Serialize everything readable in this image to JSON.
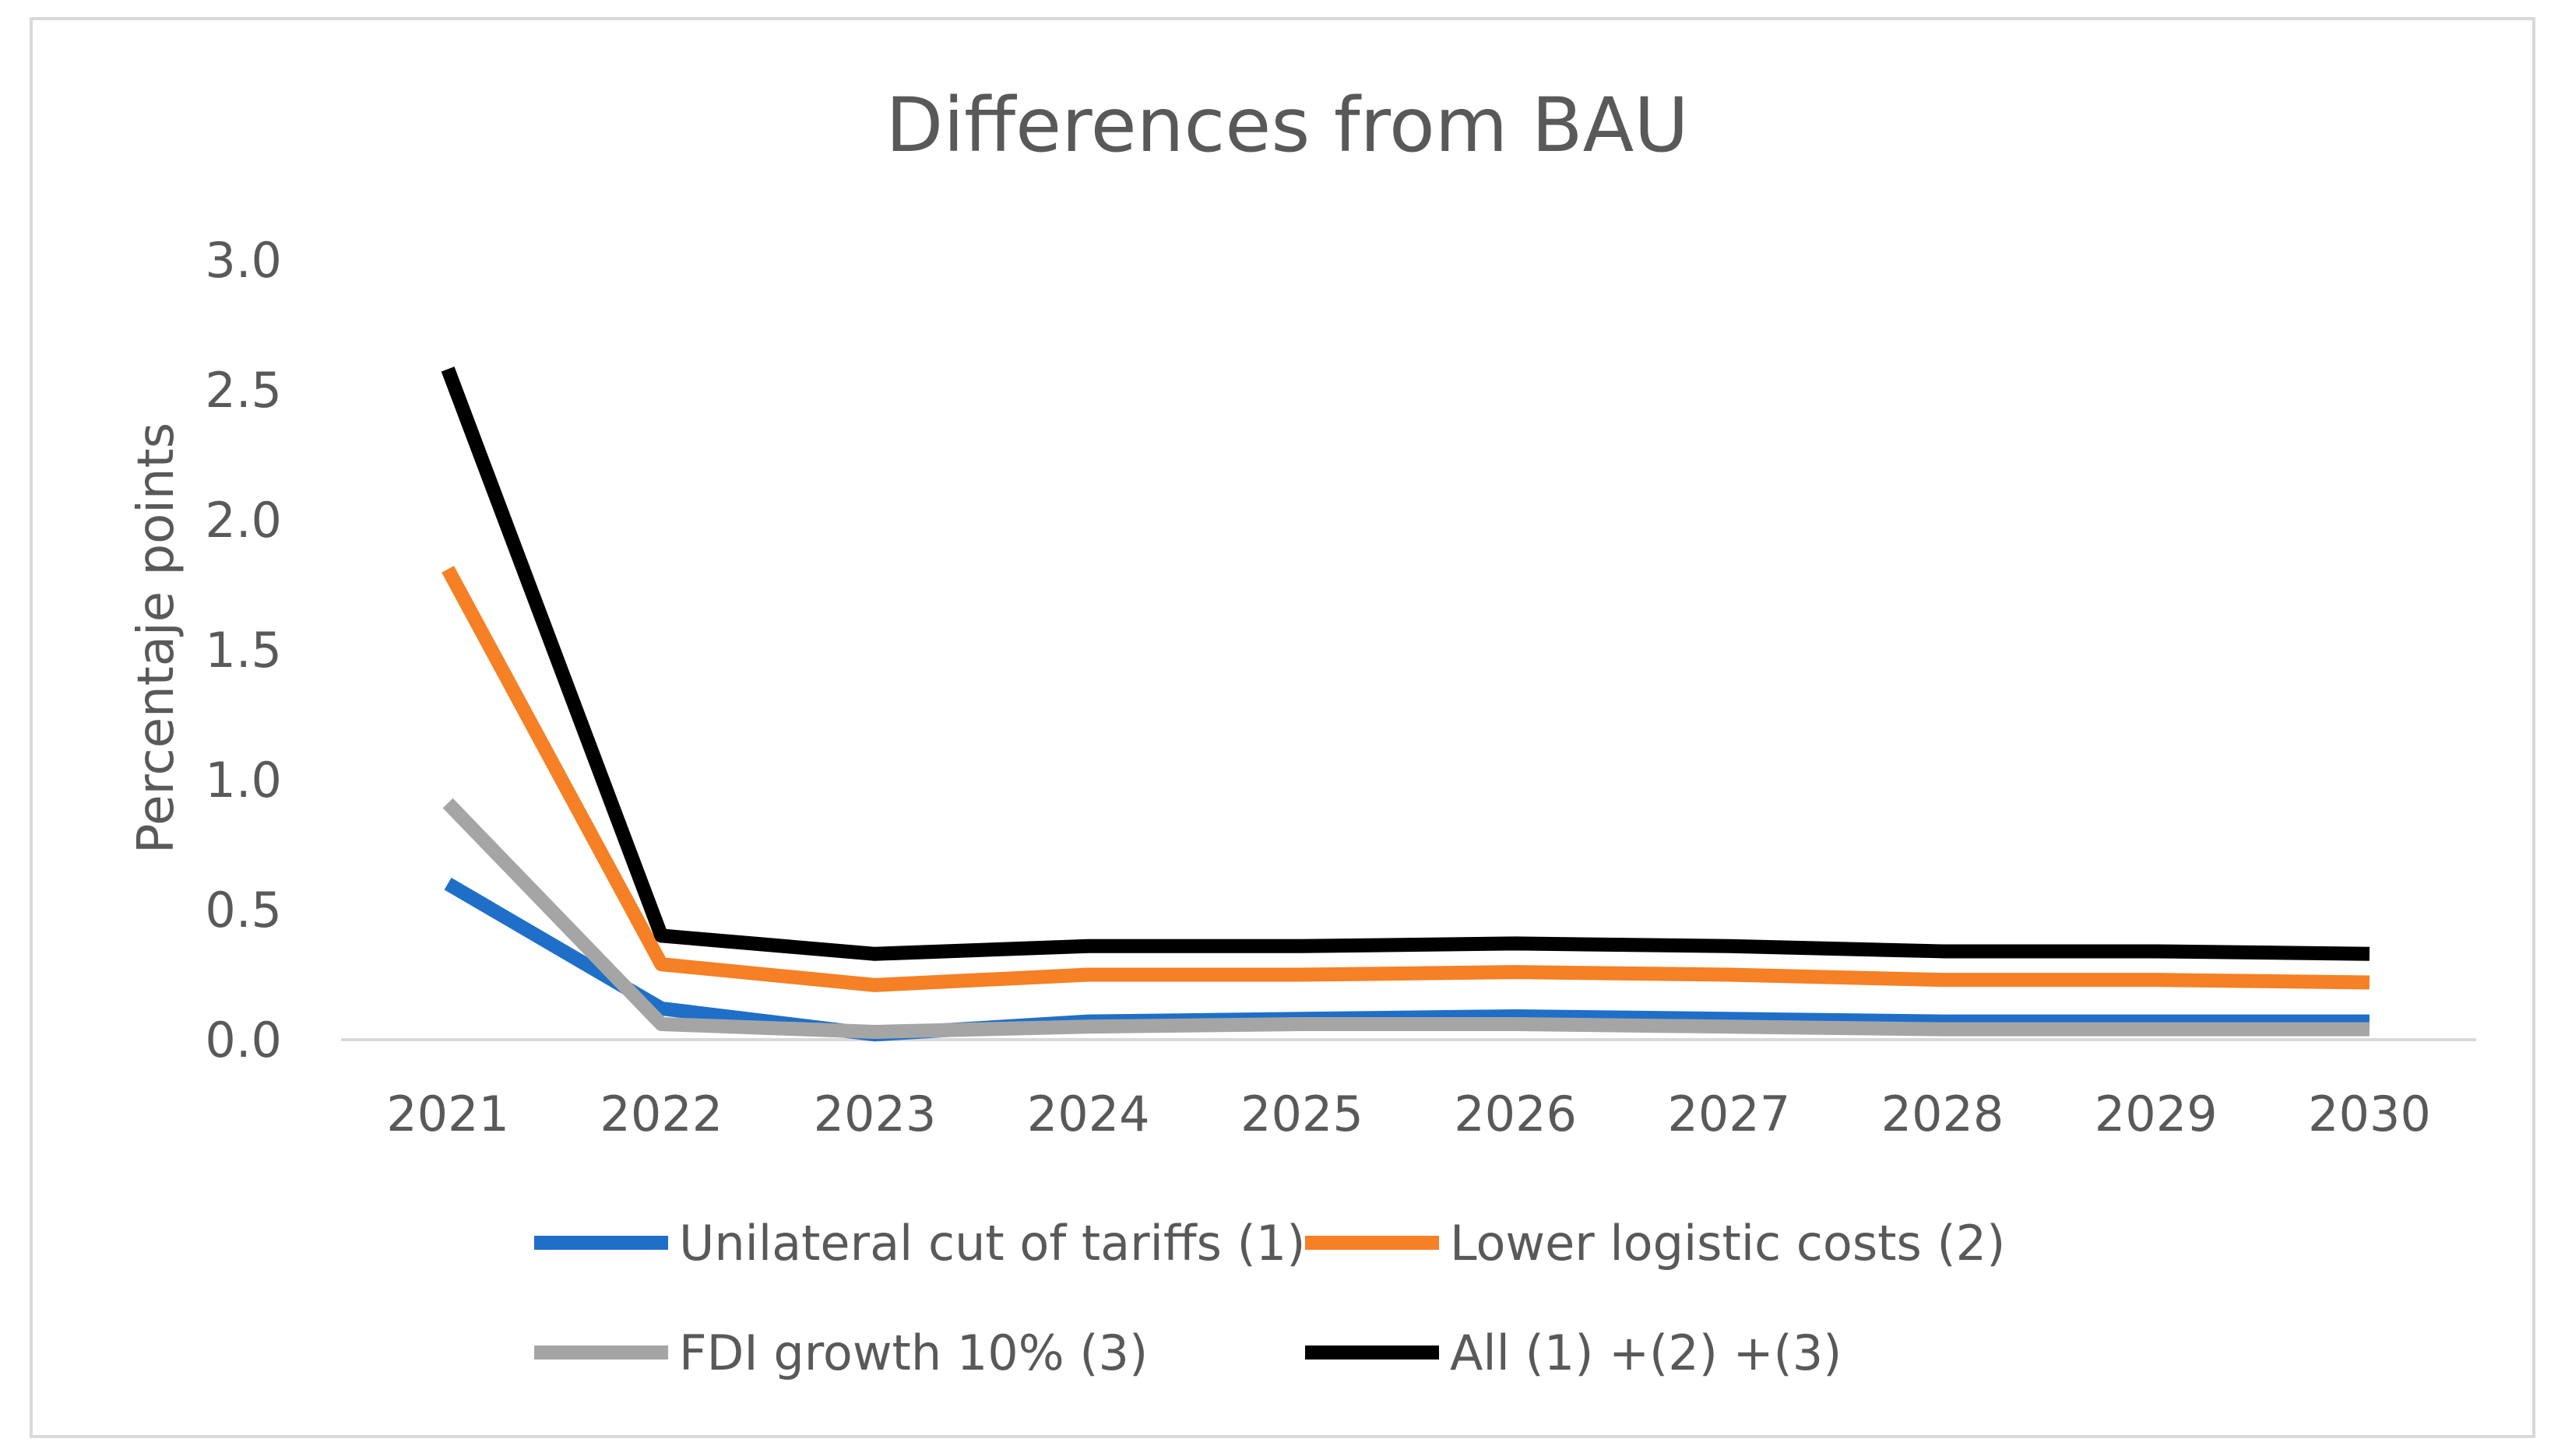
{
  "chart_data": {
    "type": "line",
    "title": "Differences from BAU",
    "xlabel": "",
    "ylabel": "Percentaje points",
    "categories": [
      "2021",
      "2022",
      "2023",
      "2024",
      "2025",
      "2026",
      "2027",
      "2028",
      "2029",
      "2030"
    ],
    "ylim": [
      0,
      3
    ],
    "yticks": [
      "0.0",
      "0.5",
      "1.0",
      "1.5",
      "2.0",
      "2.5",
      "3.0"
    ],
    "grid": false,
    "legend_position": "bottom",
    "series": [
      {
        "name": "Unilateral cut of tariffs (1)",
        "color": "#1f6fc8",
        "values": [
          0.6,
          0.12,
          0.02,
          0.07,
          0.08,
          0.09,
          0.08,
          0.07,
          0.07,
          0.07
        ]
      },
      {
        "name": "Lower logistic costs (2)",
        "color": "#f58025",
        "values": [
          1.81,
          0.29,
          0.21,
          0.25,
          0.25,
          0.26,
          0.25,
          0.23,
          0.23,
          0.22
        ]
      },
      {
        "name": "FDI growth 10% (3)",
        "color": "#a5a5a5",
        "values": [
          0.91,
          0.06,
          0.03,
          0.05,
          0.06,
          0.06,
          0.05,
          0.04,
          0.04,
          0.04
        ]
      },
      {
        "name": "All (1) +(2) +(3)",
        "color": "#000000",
        "values": [
          2.58,
          0.4,
          0.33,
          0.36,
          0.36,
          0.37,
          0.36,
          0.34,
          0.34,
          0.33
        ]
      }
    ]
  }
}
